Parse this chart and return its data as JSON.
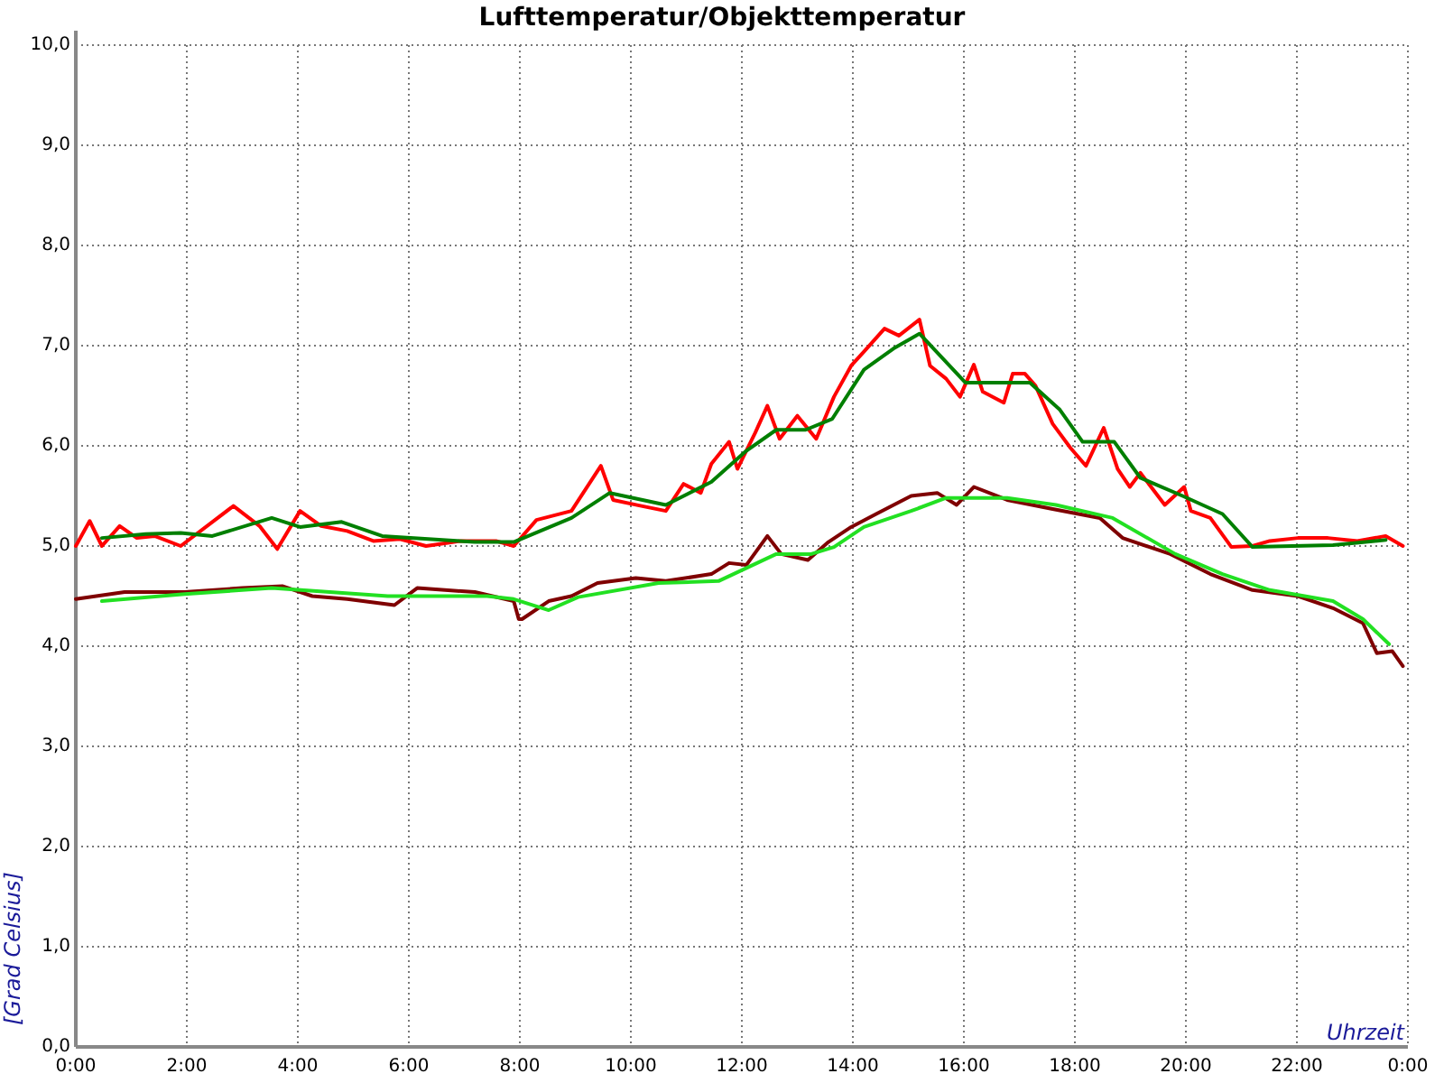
{
  "chart_data": {
    "type": "line",
    "title": "Lufttemperatur/Objekttemperatur",
    "xlabel": "Uhrzeit",
    "ylabel": "[Grad Celsius]",
    "xlim": [
      0,
      24
    ],
    "ylim": [
      0,
      10
    ],
    "xticks": [
      {
        "value": 0,
        "label": "0:00"
      },
      {
        "value": 2,
        "label": "2:00"
      },
      {
        "value": 4,
        "label": "4:00"
      },
      {
        "value": 6,
        "label": "6:00"
      },
      {
        "value": 8,
        "label": "8:00"
      },
      {
        "value": 10,
        "label": "10:00"
      },
      {
        "value": 12,
        "label": "12:00"
      },
      {
        "value": 14,
        "label": "14:00"
      },
      {
        "value": 16,
        "label": "16:00"
      },
      {
        "value": 18,
        "label": "18:00"
      },
      {
        "value": 20,
        "label": "20:00"
      },
      {
        "value": 22,
        "label": "22:00"
      },
      {
        "value": 24,
        "label": "0:00"
      }
    ],
    "yticks": [
      {
        "value": 0,
        "label": "0,0"
      },
      {
        "value": 1,
        "label": "1,0"
      },
      {
        "value": 2,
        "label": "2,0"
      },
      {
        "value": 3,
        "label": "3,0"
      },
      {
        "value": 4,
        "label": "4,0"
      },
      {
        "value": 5,
        "label": "5,0"
      },
      {
        "value": 6,
        "label": "6,0"
      },
      {
        "value": 7,
        "label": "7,0"
      },
      {
        "value": 8,
        "label": "8,0"
      },
      {
        "value": 9,
        "label": "9,0"
      },
      {
        "value": 10,
        "label": "10,0"
      }
    ],
    "grid": true,
    "marker": "none",
    "line_style": "solid",
    "series": [
      {
        "color": "#ff0000",
        "x": [
          0,
          0.25,
          0.47,
          0.79,
          1.1,
          1.42,
          1.89,
          2.84,
          3.31,
          3.63,
          4.04,
          4.42,
          4.89,
          5.36,
          5.84,
          6.31,
          6.94,
          7.57,
          7.89,
          8.3,
          8.93,
          9.46,
          9.68,
          10.19,
          10.63,
          10.95,
          11.26,
          11.45,
          11.77,
          11.92,
          12.24,
          12.46,
          12.68,
          13.0,
          13.34,
          13.66,
          13.97,
          14.2,
          14.57,
          14.83,
          15.2,
          15.39,
          15.68,
          15.93,
          16.18,
          16.34,
          16.72,
          16.88,
          17.1,
          17.29,
          17.6,
          17.92,
          18.2,
          18.52,
          18.77,
          18.99,
          19.18,
          19.62,
          19.97,
          20.09,
          20.44,
          20.82,
          21.2,
          21.51,
          22.02,
          22.56,
          23.09,
          23.6,
          23.91
        ],
        "values": [
          5.0,
          5.25,
          5.0,
          5.2,
          5.08,
          5.1,
          5.0,
          5.4,
          5.2,
          4.97,
          5.35,
          5.2,
          5.15,
          5.05,
          5.07,
          5.0,
          5.05,
          5.05,
          5.0,
          5.26,
          5.35,
          5.8,
          5.46,
          5.4,
          5.35,
          5.62,
          5.53,
          5.82,
          6.04,
          5.77,
          6.13,
          6.4,
          6.07,
          6.3,
          6.07,
          6.49,
          6.8,
          6.94,
          7.17,
          7.1,
          7.26,
          6.8,
          6.67,
          6.49,
          6.81,
          6.54,
          6.43,
          6.72,
          6.72,
          6.6,
          6.22,
          5.98,
          5.8,
          6.18,
          5.77,
          5.59,
          5.73,
          5.41,
          5.59,
          5.35,
          5.28,
          4.99,
          5.0,
          5.05,
          5.08,
          5.08,
          5.05,
          5.1,
          5.0
        ]
      },
      {
        "color": "#007f00",
        "x": [
          0.47,
          1.26,
          1.89,
          2.46,
          3.53,
          4.04,
          4.79,
          5.52,
          7.19,
          7.89,
          8.93,
          9.62,
          10.63,
          11.45,
          12.08,
          12.62,
          13.15,
          13.63,
          14.2,
          14.73,
          15.2,
          16.03,
          17.19,
          17.73,
          18.14,
          18.71,
          19.18,
          19.94,
          20.66,
          21.2,
          22.65,
          23.6
        ],
        "values": [
          5.08,
          5.12,
          5.13,
          5.1,
          5.28,
          5.19,
          5.24,
          5.1,
          5.04,
          5.04,
          5.28,
          5.53,
          5.41,
          5.64,
          5.95,
          6.16,
          6.16,
          6.27,
          6.76,
          6.97,
          7.12,
          6.63,
          6.63,
          6.36,
          6.04,
          6.04,
          5.68,
          5.5,
          5.32,
          4.99,
          5.01,
          5.06
        ]
      },
      {
        "color": "#7f0000",
        "x": [
          0,
          0.88,
          1.96,
          3.0,
          3.72,
          4.26,
          4.89,
          5.74,
          6.15,
          7.19,
          7.89,
          7.98,
          8.04,
          8.52,
          8.93,
          9.4,
          10.09,
          10.63,
          11.45,
          11.77,
          12.08,
          12.46,
          12.71,
          13.19,
          13.56,
          13.97,
          14.42,
          15.05,
          15.52,
          15.87,
          16.18,
          16.78,
          17.6,
          18.45,
          18.86,
          19.72,
          20.44,
          21.2,
          22.02,
          22.65,
          23.19,
          23.44,
          23.72,
          23.91
        ],
        "values": [
          4.47,
          4.54,
          4.54,
          4.58,
          4.6,
          4.5,
          4.47,
          4.41,
          4.58,
          4.54,
          4.45,
          4.27,
          4.27,
          4.45,
          4.5,
          4.63,
          4.68,
          4.65,
          4.72,
          4.83,
          4.81,
          5.1,
          4.92,
          4.86,
          5.04,
          5.19,
          5.32,
          5.5,
          5.53,
          5.41,
          5.59,
          5.46,
          5.37,
          5.28,
          5.08,
          4.92,
          4.72,
          4.56,
          4.5,
          4.38,
          4.23,
          3.93,
          3.95,
          3.8
        ]
      },
      {
        "color": "#22e022",
        "x": [
          0.47,
          1.96,
          3.53,
          5.62,
          7.41,
          7.89,
          8.52,
          9.05,
          10.5,
          11.58,
          12.62,
          13.25,
          13.66,
          14.2,
          15.05,
          15.68,
          16.78,
          17.66,
          18.68,
          19.81,
          20.66,
          21.51,
          22.65,
          23.19,
          23.66
        ],
        "values": [
          4.45,
          4.52,
          4.58,
          4.5,
          4.5,
          4.47,
          4.36,
          4.49,
          4.63,
          4.65,
          4.92,
          4.92,
          4.99,
          5.19,
          5.35,
          5.48,
          5.48,
          5.41,
          5.28,
          4.92,
          4.72,
          4.56,
          4.45,
          4.27,
          4.02
        ]
      }
    ]
  }
}
